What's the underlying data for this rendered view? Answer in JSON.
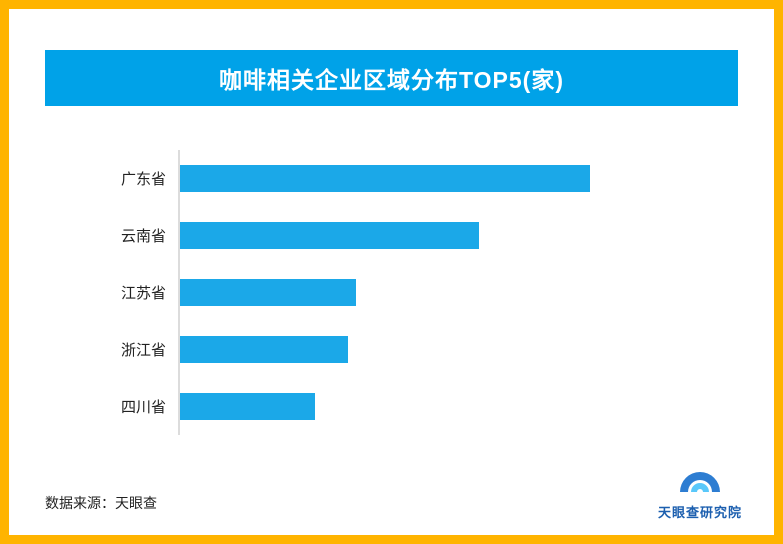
{
  "colors": {
    "border_yellow": "#FFB400",
    "banner_blue": "#00A2E8",
    "bar_blue": "#1BA8E8",
    "axis_gray": "#DCDCDC",
    "logo_blue": "#1C5FAF",
    "title_text": "#FFFFFF"
  },
  "footer": {
    "source": "数据来源：天眼查",
    "logo_text": "天眼查研究院"
  },
  "chart_data": {
    "type": "bar",
    "orientation": "horizontal",
    "title": "咖啡相关企业区域分布TOP5(家)",
    "categories": [
      "广东省",
      "云南省",
      "江苏省",
      "浙江省",
      "四川省"
    ],
    "values": [
      100,
      73,
      43,
      41,
      33
    ],
    "values_note": "relative bar lengths (longest bar = 100); no numeric labels or axis ticks shown in image",
    "xlabel": "",
    "ylabel": "",
    "grid": false,
    "legend": false,
    "value_labels_shown": false
  }
}
